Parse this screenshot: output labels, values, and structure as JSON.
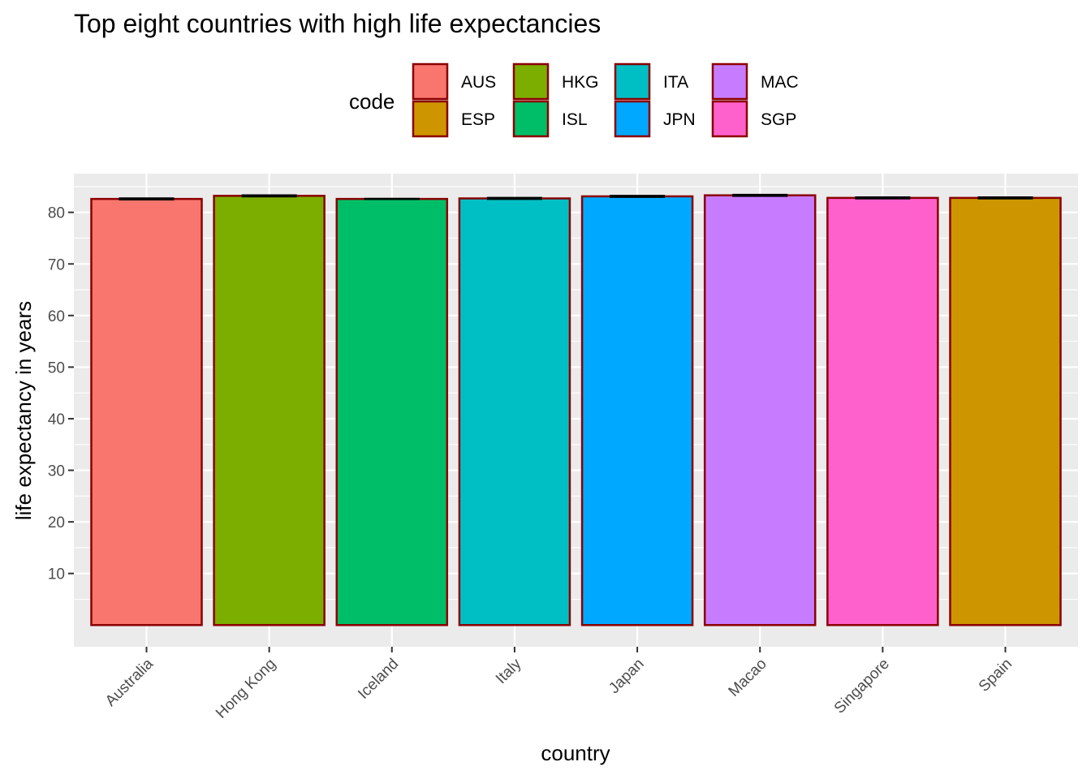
{
  "chart_data": {
    "type": "bar",
    "title": "Top eight countries with high life expectancies",
    "xlabel": "country",
    "ylabel": "life expectancy in years",
    "categories": [
      "Australia",
      "Hong Kong",
      "Iceland",
      "Italy",
      "Japan",
      "Macao",
      "Singapore",
      "Spain"
    ],
    "codes": [
      "AUS",
      "HKG",
      "ISL",
      "ITA",
      "JPN",
      "MAC",
      "SGP",
      "ESP"
    ],
    "values": [
      82.6,
      83.2,
      82.6,
      82.7,
      83.1,
      83.3,
      82.8,
      82.8
    ],
    "error_bars": [
      [
        82.5,
        82.7
      ],
      [
        83.1,
        83.3
      ],
      [
        82.6,
        82.6
      ],
      [
        82.6,
        82.8
      ],
      [
        83.0,
        83.2
      ],
      [
        83.2,
        83.4
      ],
      [
        82.7,
        82.9
      ],
      [
        82.7,
        82.9
      ]
    ],
    "ylim": [
      -4.2,
      87.5
    ],
    "yticks": [
      10,
      20,
      30,
      40,
      50,
      60,
      70,
      80
    ],
    "grid": true,
    "bar_border_color": "#8B0000",
    "legend": {
      "title": "code",
      "placement": "top",
      "entries": [
        {
          "label": "AUS",
          "color": "#F8766D"
        },
        {
          "label": "ESP",
          "color": "#CD9600"
        },
        {
          "label": "HKG",
          "color": "#7CAE00"
        },
        {
          "label": "ISL",
          "color": "#00BE67"
        },
        {
          "label": "ITA",
          "color": "#00BFC4"
        },
        {
          "label": "JPN",
          "color": "#00A9FF"
        },
        {
          "label": "MAC",
          "color": "#C77CFF"
        },
        {
          "label": "SGP",
          "color": "#FF61CC"
        }
      ]
    }
  }
}
